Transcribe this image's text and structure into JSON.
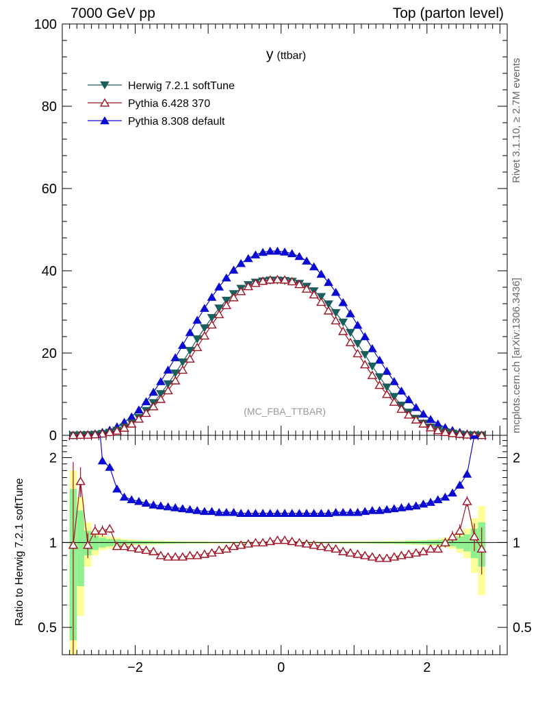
{
  "header": {
    "left": "7000 GeV pp",
    "right": "Top (parton level)"
  },
  "side_labels": {
    "rivet": "Rivet 3.1.10, ≥ 2.7M events",
    "mcplots": "mcplots.cern.ch [arXiv:1306.3436]"
  },
  "chart_data": {
    "type": "line",
    "title": "y",
    "title_sub": "(ttbar)",
    "analysis_label": "(MC_FBA_TTBAR)",
    "xlabel": "",
    "legend_placement": "top-left",
    "colors": {
      "herwig": "#1a5e5e",
      "pythia6": "#a01020",
      "pythia8": "#0a0ad2",
      "band_inner": "#90f090",
      "band_outer": "#ffff99"
    },
    "series": [
      {
        "name": "Herwig 7.2.1 softTune",
        "key": "herwig",
        "marker": "triangle-down-filled"
      },
      {
        "name": "Pythia 6.428 370",
        "key": "pythia6",
        "marker": "triangle-up-open"
      },
      {
        "name": "Pythia 8.308 default",
        "key": "pythia8",
        "marker": "triangle-up-filled"
      }
    ],
    "x": [
      -2.85,
      -2.75,
      -2.65,
      -2.55,
      -2.45,
      -2.35,
      -2.25,
      -2.15,
      -2.05,
      -1.95,
      -1.85,
      -1.75,
      -1.65,
      -1.55,
      -1.45,
      -1.35,
      -1.25,
      -1.15,
      -1.05,
      -0.95,
      -0.85,
      -0.75,
      -0.65,
      -0.55,
      -0.45,
      -0.35,
      -0.25,
      -0.15,
      -0.05,
      0.05,
      0.15,
      0.25,
      0.35,
      0.45,
      0.55,
      0.65,
      0.75,
      0.85,
      0.95,
      1.05,
      1.15,
      1.25,
      1.35,
      1.45,
      1.55,
      1.65,
      1.75,
      1.85,
      1.95,
      2.05,
      2.15,
      2.25,
      2.35,
      2.45,
      2.55,
      2.65,
      2.75
    ],
    "main_panel": {
      "ylim": [
        0,
        100
      ],
      "y_ticks": [
        0,
        20,
        40,
        60,
        80,
        100
      ],
      "x_ticks": [
        -2,
        0,
        2
      ],
      "values": {
        "herwig": [
          0.02,
          0.05,
          0.1,
          0.2,
          0.4,
          0.7,
          1.2,
          2.0,
          3.0,
          4.3,
          6.0,
          7.9,
          10.1,
          12.5,
          15.1,
          17.8,
          20.6,
          23.4,
          26.1,
          28.6,
          30.9,
          32.8,
          34.4,
          35.7,
          36.6,
          37.2,
          37.5,
          37.7,
          37.7,
          37.6,
          37.4,
          36.9,
          36.2,
          35.1,
          33.7,
          31.9,
          29.8,
          27.5,
          25.0,
          22.3,
          19.6,
          16.8,
          14.2,
          11.7,
          9.4,
          7.3,
          5.6,
          4.1,
          2.9,
          2.0,
          1.3,
          0.8,
          0.5,
          0.25,
          0.1,
          0.05,
          0.02
        ],
        "pythia6": [
          0.02,
          0.08,
          0.1,
          0.2,
          0.4,
          0.75,
          1.1,
          1.8,
          2.8,
          4.0,
          5.4,
          7.0,
          8.8,
          10.9,
          13.3,
          15.9,
          18.6,
          21.4,
          24.2,
          26.9,
          29.4,
          31.6,
          33.5,
          35.0,
          36.2,
          37.0,
          37.5,
          37.8,
          37.9,
          37.8,
          37.4,
          36.7,
          35.6,
          34.2,
          32.4,
          30.3,
          27.9,
          25.3,
          22.6,
          19.9,
          17.2,
          14.6,
          12.2,
          10.0,
          8.1,
          6.4,
          5.0,
          3.8,
          2.8,
          1.9,
          1.2,
          0.75,
          0.5,
          0.3,
          0.15,
          0.05,
          0.02
        ],
        "pythia8": [
          0.03,
          0.1,
          0.2,
          0.4,
          0.75,
          1.3,
          2.1,
          3.2,
          4.5,
          6.2,
          8.2,
          10.5,
          13.1,
          15.9,
          18.9,
          21.9,
          25.0,
          28.0,
          30.9,
          33.6,
          36.1,
          38.3,
          40.2,
          41.8,
          43.0,
          43.9,
          44.5,
          44.8,
          44.8,
          44.6,
          44.2,
          43.5,
          42.4,
          41.0,
          39.2,
          37.2,
          34.8,
          32.3,
          29.6,
          26.8,
          24.0,
          21.1,
          18.3,
          15.6,
          13.1,
          10.8,
          8.7,
          6.8,
          5.2,
          3.9,
          2.8,
          1.9,
          1.2,
          0.75,
          0.4,
          0.15,
          0.05
        ]
      }
    },
    "ratio_panel": {
      "ylabel": "Ratio to Herwig 7.2.1 softTune",
      "ylim": [
        0.4,
        2.4
      ],
      "y_ticks": [
        0.5,
        1,
        2
      ],
      "values": {
        "pythia6": [
          0.98,
          1.65,
          0.98,
          1.1,
          1.1,
          1.12,
          0.97,
          0.97,
          0.96,
          0.95,
          0.94,
          0.93,
          0.9,
          0.89,
          0.89,
          0.89,
          0.9,
          0.9,
          0.91,
          0.92,
          0.94,
          0.95,
          0.97,
          0.98,
          0.99,
          1.0,
          1.0,
          1.01,
          1.02,
          1.02,
          1.01,
          1.0,
          0.99,
          0.98,
          0.97,
          0.96,
          0.95,
          0.93,
          0.92,
          0.91,
          0.9,
          0.89,
          0.88,
          0.88,
          0.89,
          0.9,
          0.91,
          0.92,
          0.93,
          0.95,
          0.95,
          1.0,
          1.05,
          1.1,
          1.4,
          1.05,
          0.95
        ],
        "pythia6_err": [
          0.95,
          0.2,
          0.1,
          0.06,
          0.05,
          0.04,
          0.03,
          0.02,
          0.02,
          0.02,
          0.015,
          0.015,
          0.012,
          0.012,
          0.01,
          0.01,
          0.01,
          0.01,
          0.01,
          0.01,
          0.01,
          0.01,
          0.01,
          0.01,
          0.01,
          0.01,
          0.01,
          0.01,
          0.01,
          0.01,
          0.01,
          0.01,
          0.01,
          0.01,
          0.01,
          0.01,
          0.01,
          0.01,
          0.01,
          0.01,
          0.01,
          0.012,
          0.012,
          0.012,
          0.015,
          0.015,
          0.02,
          0.02,
          0.02,
          0.025,
          0.03,
          0.04,
          0.05,
          0.06,
          0.06,
          0.12,
          0.18
        ],
        "pythia8": [
          4.0,
          4.0,
          4.0,
          4.0,
          1.95,
          1.85,
          1.55,
          1.45,
          1.42,
          1.4,
          1.38,
          1.36,
          1.35,
          1.34,
          1.33,
          1.32,
          1.31,
          1.3,
          1.29,
          1.29,
          1.28,
          1.28,
          1.28,
          1.27,
          1.27,
          1.27,
          1.27,
          1.27,
          1.27,
          1.27,
          1.27,
          1.27,
          1.27,
          1.27,
          1.27,
          1.27,
          1.28,
          1.28,
          1.28,
          1.28,
          1.29,
          1.3,
          1.3,
          1.31,
          1.32,
          1.33,
          1.34,
          1.35,
          1.37,
          1.39,
          1.42,
          1.45,
          1.5,
          1.6,
          1.75,
          2.4,
          4.0
        ],
        "band_outer_half": [
          0.8,
          0.45,
          0.18,
          0.1,
          0.06,
          0.05,
          0.04,
          0.03,
          0.025,
          0.02,
          0.02,
          0.018,
          0.015,
          0.014,
          0.012,
          0.01,
          0.01,
          0.01,
          0.01,
          0.01,
          0.008,
          0.008,
          0.008,
          0.008,
          0.008,
          0.008,
          0.008,
          0.008,
          0.008,
          0.008,
          0.008,
          0.008,
          0.008,
          0.008,
          0.008,
          0.008,
          0.008,
          0.01,
          0.01,
          0.01,
          0.01,
          0.01,
          0.012,
          0.012,
          0.014,
          0.015,
          0.018,
          0.02,
          0.02,
          0.025,
          0.03,
          0.04,
          0.05,
          0.08,
          0.12,
          0.22,
          0.35
        ],
        "band_inner_half": [
          0.55,
          0.3,
          0.1,
          0.06,
          0.04,
          0.03,
          0.025,
          0.02,
          0.015,
          0.013,
          0.012,
          0.01,
          0.01,
          0.008,
          0.008,
          0.007,
          0.006,
          0.006,
          0.006,
          0.005,
          0.005,
          0.005,
          0.005,
          0.005,
          0.005,
          0.005,
          0.005,
          0.005,
          0.005,
          0.005,
          0.005,
          0.005,
          0.005,
          0.005,
          0.005,
          0.005,
          0.005,
          0.006,
          0.006,
          0.006,
          0.006,
          0.007,
          0.008,
          0.008,
          0.009,
          0.01,
          0.012,
          0.013,
          0.015,
          0.018,
          0.02,
          0.025,
          0.03,
          0.05,
          0.07,
          0.12,
          0.18
        ]
      }
    }
  }
}
